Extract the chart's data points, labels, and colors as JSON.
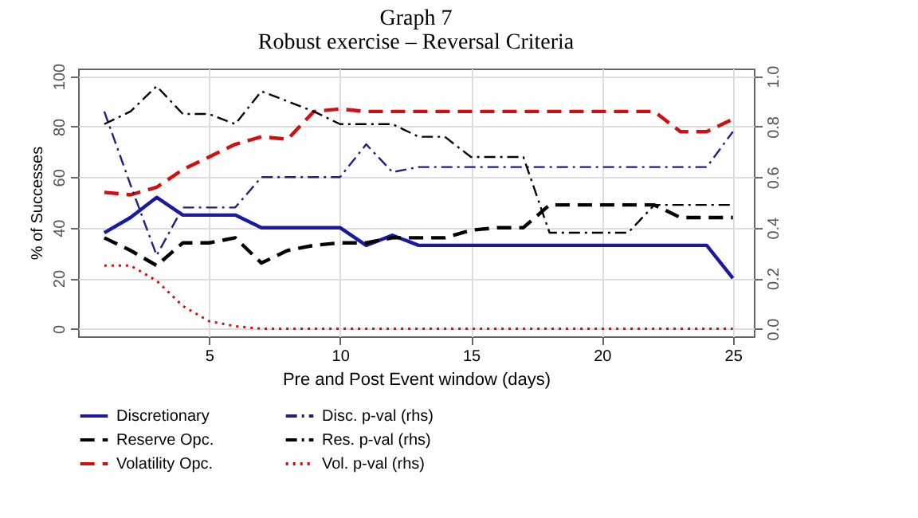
{
  "chart_data": {
    "type": "line",
    "title": "Graph 7",
    "subtitle": "Robust exercise – Reversal Criteria",
    "xlabel": "Pre and Post Event window (days)",
    "ylabel": "% of Successes",
    "x": [
      1,
      2,
      3,
      4,
      5,
      6,
      7,
      8,
      9,
      10,
      11,
      12,
      13,
      14,
      15,
      16,
      17,
      18,
      19,
      20,
      21,
      22,
      23,
      24,
      25
    ],
    "xlim": [
      0,
      25.8
    ],
    "xticks": [
      5,
      10,
      15,
      20,
      25
    ],
    "ylim": [
      -3,
      103
    ],
    "yticks": [
      0,
      20,
      40,
      60,
      80,
      100
    ],
    "y2lim": [
      -0.03,
      1.03
    ],
    "y2ticks": [
      {
        "value": 0,
        "label": "0.0"
      },
      {
        "value": 0.2,
        "label": "0.2"
      },
      {
        "value": 0.4,
        "label": "0.4"
      },
      {
        "value": 0.6,
        "label": "0.6"
      },
      {
        "value": 0.8,
        "label": "0.8"
      },
      {
        "value": 1,
        "label": "1.0"
      }
    ],
    "grid": true,
    "legend": "bottom",
    "marker": "none",
    "series": [
      {
        "name": "Discretionary",
        "color": "#1a1aa0",
        "line_style": "solid",
        "values": [
          38,
          44,
          52,
          45,
          45,
          45,
          40,
          40,
          40,
          40,
          33,
          37,
          33,
          33,
          33,
          33,
          33,
          33,
          33,
          33,
          33,
          33,
          33,
          33,
          20
        ]
      },
      {
        "name": "Reserve Opc.",
        "color": "#000000",
        "line_style": "dashed",
        "values": [
          36,
          31,
          25,
          34,
          34,
          36,
          26,
          31,
          33,
          34,
          34,
          36,
          36,
          36,
          39,
          40,
          40,
          49,
          49,
          49,
          49,
          49,
          44,
          44,
          44
        ]
      },
      {
        "name": "Volatility Opc.",
        "color": "#d01010",
        "line_style": "dashed",
        "values": [
          54,
          53,
          56,
          63,
          68,
          73,
          76,
          75,
          86,
          87,
          86,
          86,
          86,
          86,
          86,
          86,
          86,
          86,
          86,
          86,
          86,
          86,
          78,
          78,
          83
        ]
      },
      {
        "name": "Disc. p-val (rhs)",
        "color": "#202080",
        "line_style": "dashdot",
        "axis": "y2",
        "values": [
          0.86,
          0.57,
          0.29,
          0.48,
          0.48,
          0.48,
          0.6,
          0.6,
          0.6,
          0.6,
          0.73,
          0.62,
          0.64,
          0.64,
          0.64,
          0.64,
          0.64,
          0.64,
          0.64,
          0.64,
          0.64,
          0.64,
          0.64,
          0.64,
          0.78
        ]
      },
      {
        "name": "Res.  p-val (rhs)",
        "color": "#000000",
        "line_style": "dashdot",
        "axis": "y2",
        "values": [
          0.81,
          0.86,
          0.96,
          0.85,
          0.85,
          0.81,
          0.94,
          0.9,
          0.86,
          0.81,
          0.81,
          0.81,
          0.76,
          0.76,
          0.68,
          0.68,
          0.68,
          0.38,
          0.38,
          0.38,
          0.38,
          0.49,
          0.49,
          0.49,
          0.49
        ]
      },
      {
        "name": "Vol.  p-val (rhs)",
        "color": "#d01010",
        "line_style": "dotted",
        "axis": "y2",
        "values": [
          0.25,
          0.25,
          0.19,
          0.09,
          0.03,
          0.01,
          0,
          0,
          0,
          0,
          0,
          0,
          0,
          0,
          0,
          0,
          0,
          0,
          0,
          0,
          0,
          0,
          0,
          0,
          0
        ]
      }
    ]
  }
}
